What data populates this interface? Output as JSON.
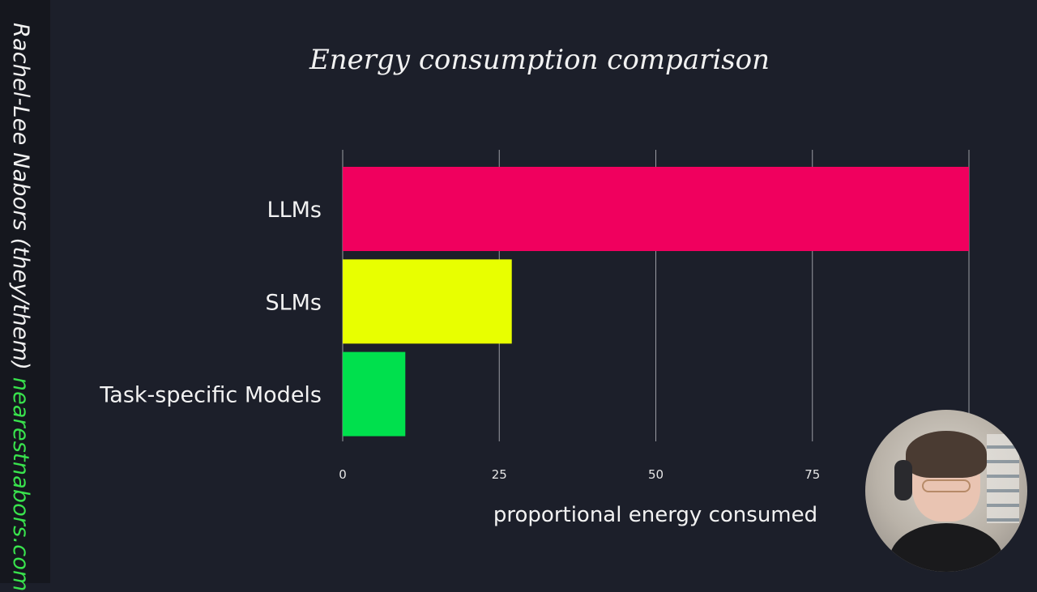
{
  "sidebar": {
    "name": "Rachel-Lee Nabors (they/them)",
    "site": "nearestnabors.com"
  },
  "colors": {
    "background": "#1c1f2a",
    "sidebar": "#15171e",
    "site_text": "#39e34d",
    "llm_bar": "#f0005e",
    "slm_bar": "#e8ff00",
    "task_bar": "#00e04d",
    "gridline": "#9a9ca3"
  },
  "chart_data": {
    "type": "bar",
    "orientation": "horizontal",
    "title": "Energy consumption comparison",
    "xlabel": "proportional energy consumed",
    "ylabel": "",
    "categories": [
      "LLMs",
      "SLMs",
      "Task-specific Models"
    ],
    "values": [
      100,
      27,
      10
    ],
    "xlim": [
      0,
      100
    ],
    "xticks": [
      0,
      25,
      50,
      75
    ],
    "grid": true,
    "legend": false
  },
  "webcam": {
    "icon": "presenter-webcam-icon"
  }
}
